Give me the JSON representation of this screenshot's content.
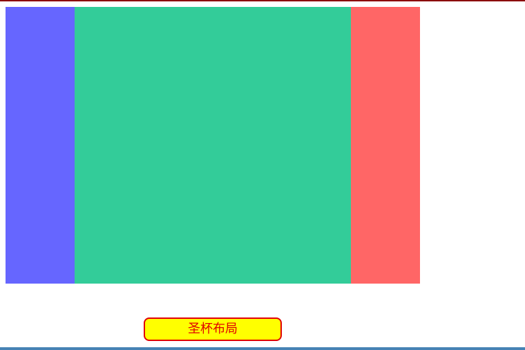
{
  "colors": {
    "top_rule": "#8b0000",
    "left_column": "#6666ff",
    "center_column": "#33cc99",
    "right_column": "#ff6666",
    "button_background": "#ffff00",
    "button_border": "#e00000",
    "button_text": "#e00000",
    "bottom_rule": "#4682b4"
  },
  "button": {
    "label": "圣杯布局"
  }
}
